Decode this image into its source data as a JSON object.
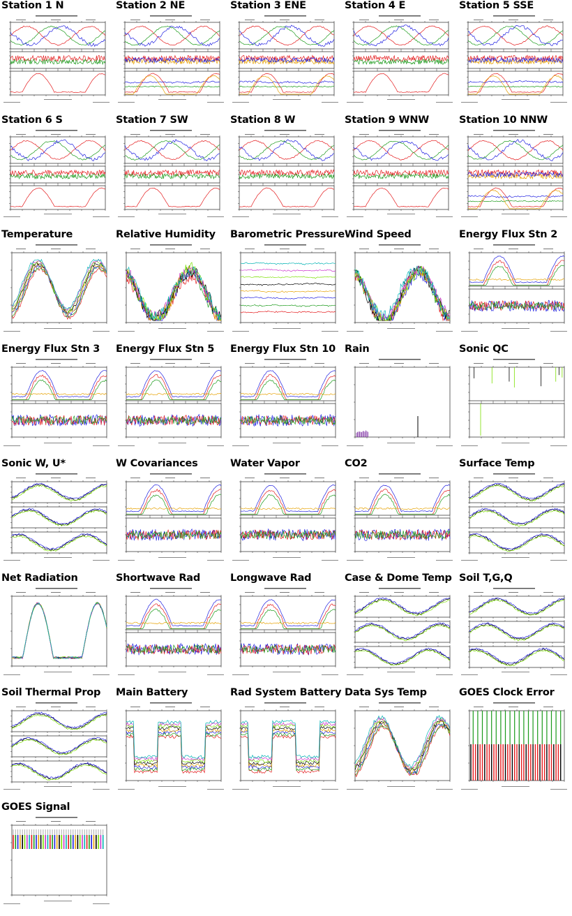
{
  "colors": {
    "red": "#e41a1c",
    "green": "#1a9a1a",
    "blue": "#1f1fe0",
    "orange": "#e6a100",
    "black": "#000000",
    "lime": "#7be000",
    "magenta": "#cc33cc",
    "cyan": "#00b3b3",
    "purple": "#7a2aa0"
  },
  "plots": [
    {
      "title": "Station 1 N",
      "kind": "station"
    },
    {
      "title": "Station 2 NE",
      "kind": "station2"
    },
    {
      "title": "Station 3 ENE",
      "kind": "station2"
    },
    {
      "title": "Station 4 E",
      "kind": "station"
    },
    {
      "title": "Station 5 SSE",
      "kind": "station2"
    },
    {
      "title": "Station 6 S",
      "kind": "station"
    },
    {
      "title": "Station 7 SW",
      "kind": "station"
    },
    {
      "title": "Station 8 W",
      "kind": "station"
    },
    {
      "title": "Station 9 WNW",
      "kind": "station"
    },
    {
      "title": "Station 10 NNW",
      "kind": "station2"
    },
    {
      "title": "Temperature",
      "kind": "multi-diurnal"
    },
    {
      "title": "Relative Humidity",
      "kind": "multi-noisy"
    },
    {
      "title": "Barometric Pressure",
      "kind": "flat-lines"
    },
    {
      "title": "Wind Speed",
      "kind": "multi-noisy"
    },
    {
      "title": "Energy Flux Stn 2",
      "kind": "two-panel"
    },
    {
      "title": "Energy Flux Stn 3",
      "kind": "two-panel"
    },
    {
      "title": "Energy Flux Stn 5",
      "kind": "two-panel"
    },
    {
      "title": "Energy Flux Stn 10",
      "kind": "two-panel"
    },
    {
      "title": "Rain",
      "kind": "spikes"
    },
    {
      "title": "Sonic QC",
      "kind": "spikes2"
    },
    {
      "title": "Sonic W, U*",
      "kind": "three-panel"
    },
    {
      "title": "W Covariances",
      "kind": "two-panel"
    },
    {
      "title": "Water Vapor",
      "kind": "two-panel"
    },
    {
      "title": "CO2",
      "kind": "two-panel"
    },
    {
      "title": "Surface Temp",
      "kind": "three-panel"
    },
    {
      "title": "Net Radiation",
      "kind": "big-diurnal"
    },
    {
      "title": "Shortwave Rad",
      "kind": "two-panel"
    },
    {
      "title": "Longwave Rad",
      "kind": "two-panel"
    },
    {
      "title": "Case & Dome Temp",
      "kind": "three-panel"
    },
    {
      "title": "Soil T,G,Q",
      "kind": "three-panel"
    },
    {
      "title": "Soil Thermal Prop",
      "kind": "three-panel"
    },
    {
      "title": "Main Battery",
      "kind": "battery"
    },
    {
      "title": "Rad System Battery",
      "kind": "battery"
    },
    {
      "title": "Data Sys Temp",
      "kind": "multi-diurnal"
    },
    {
      "title": "GOES Clock Error",
      "kind": "bars"
    },
    {
      "title": "GOES Signal",
      "kind": "bars2"
    }
  ]
}
